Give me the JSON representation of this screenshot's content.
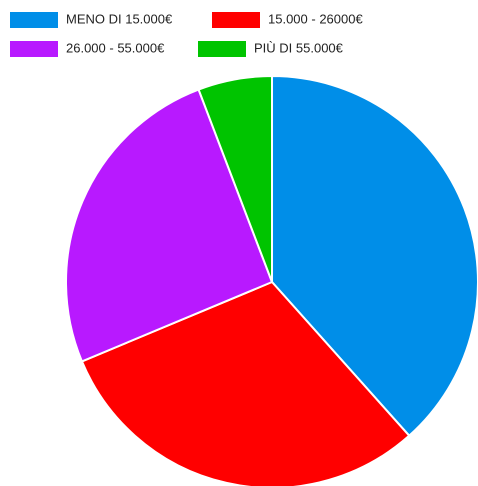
{
  "chart_data": {
    "type": "pie",
    "categories": [
      "MENO DI 15.000€",
      "15.000 - 26000€",
      "26.000 - 55.000€",
      "PIÙ DI 55.000€"
    ],
    "values": [
      38.4,
      30.3,
      25.5,
      5.8
    ],
    "colors": [
      "#008ee8",
      "#ff0000",
      "#b819ff",
      "#00c400"
    ],
    "legend": "top"
  }
}
